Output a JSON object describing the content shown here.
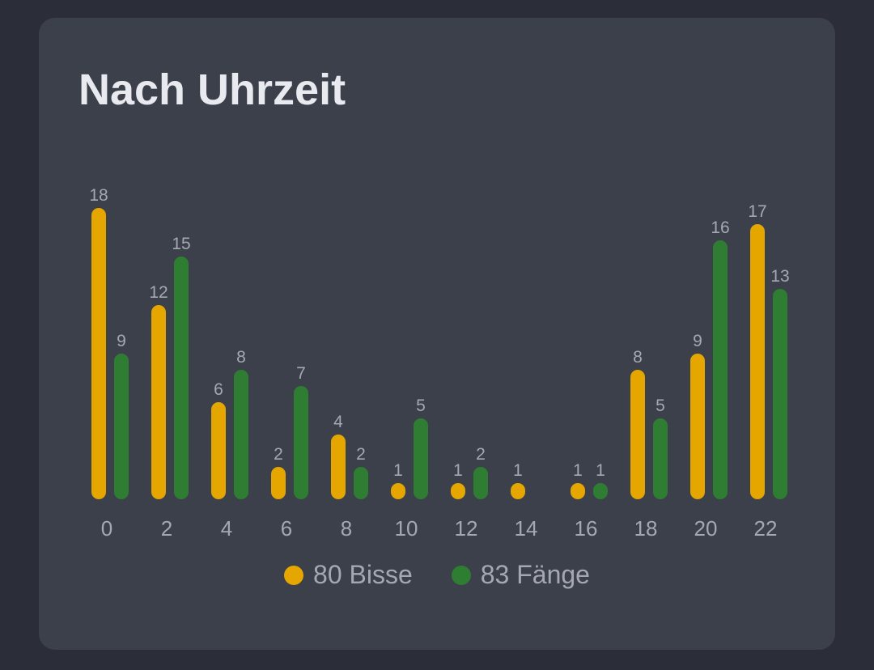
{
  "card": {
    "title": "Nach Uhrzeit"
  },
  "chart_data": {
    "type": "bar",
    "categories": [
      "0",
      "2",
      "4",
      "6",
      "8",
      "10",
      "12",
      "14",
      "16",
      "18",
      "20",
      "22"
    ],
    "series": [
      {
        "name": "80 Bisse",
        "color": "#e5a600",
        "values": [
          18,
          12,
          6,
          2,
          4,
          1,
          1,
          1,
          1,
          8,
          9,
          17
        ]
      },
      {
        "name": "83 Fänge",
        "color": "#2e7d32",
        "values": [
          9,
          15,
          8,
          7,
          2,
          5,
          2,
          0,
          1,
          5,
          16,
          13
        ]
      }
    ],
    "data_labels": true,
    "grid": false,
    "legend_position": "bottom"
  }
}
